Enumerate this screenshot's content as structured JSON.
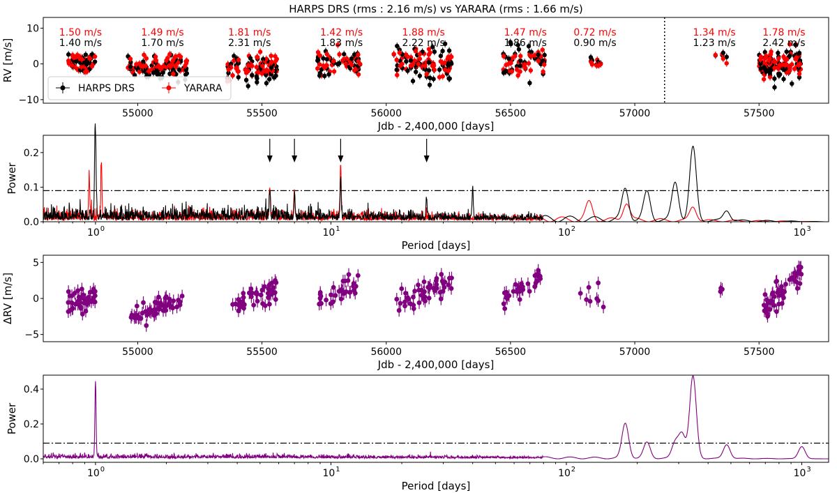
{
  "chart_data": [
    {
      "type": "scatter",
      "title": "HARPS DRS (rms : 2.16 m/s)    vs    YARARA (rms : 1.66 m/s)",
      "xlabel": "Jdb - 2,400,000 [days]",
      "ylabel": "RV [m/s]",
      "xlim": [
        54620,
        57780
      ],
      "ylim": [
        -11,
        13
      ],
      "xticks": [
        55000,
        55500,
        56000,
        56500,
        57000,
        57500
      ],
      "yticks": [
        -10,
        0,
        10
      ],
      "vline_x": 57120,
      "legend": {
        "position": "bottom-left",
        "entries": [
          "HARPS DRS",
          "YARARA"
        ]
      },
      "series": [
        {
          "name": "HARPS DRS",
          "color": "#000000"
        },
        {
          "name": "YARARA",
          "color": "#ff0000"
        }
      ],
      "seasons": [
        {
          "center": 54770,
          "start": 54710,
          "end": 54830,
          "harps_rms": "1.40 m/s",
          "yarara_rms": "1.50 m/s",
          "harps_mean": 0.6,
          "yarara_mean": 0.5,
          "harps_sd": 1.4,
          "yarara_sd": 1.5,
          "n": 36
        },
        {
          "center": 55100,
          "start": 54960,
          "end": 55200,
          "harps_rms": "1.70 m/s",
          "yarara_rms": "1.49 m/s",
          "harps_mean": -1.5,
          "yarara_mean": -0.2,
          "harps_sd": 1.7,
          "yarara_sd": 1.5,
          "n": 60
        },
        {
          "center": 55450,
          "start": 55360,
          "end": 55560,
          "harps_rms": "2.31 m/s",
          "yarara_rms": "1.81 m/s",
          "harps_mean": -1.2,
          "yarara_mean": -0.5,
          "harps_sd": 2.3,
          "yarara_sd": 1.8,
          "n": 50
        },
        {
          "center": 55820,
          "start": 55720,
          "end": 55900,
          "harps_rms": "1.83 m/s",
          "yarara_rms": "1.42 m/s",
          "harps_mean": 0.3,
          "yarara_mean": 0.0,
          "harps_sd": 1.8,
          "yarara_sd": 1.4,
          "n": 36
        },
        {
          "center": 56150,
          "start": 56030,
          "end": 56270,
          "harps_rms": "2.22 m/s",
          "yarara_rms": "1.88 m/s",
          "harps_mean": 0.5,
          "yarara_mean": 0.3,
          "harps_sd": 2.2,
          "yarara_sd": 1.9,
          "n": 56
        },
        {
          "center": 56560,
          "start": 56470,
          "end": 56640,
          "harps_rms": "1.86 m/s",
          "yarara_rms": "1.47 m/s",
          "harps_mean": 1.0,
          "yarara_mean": 0.6,
          "harps_sd": 1.9,
          "yarara_sd": 1.5,
          "n": 34
        },
        {
          "center": 56840,
          "start": 56780,
          "end": 56880,
          "harps_rms": "0.90 m/s",
          "yarara_rms": "0.72 m/s",
          "harps_mean": 0.2,
          "yarara_mean": 0.3,
          "harps_sd": 0.9,
          "yarara_sd": 0.7,
          "n": 8
        },
        {
          "center": 57320,
          "start": 57290,
          "end": 57370,
          "harps_rms": "1.23 m/s",
          "yarara_rms": "1.34 m/s",
          "harps_mean": 2.0,
          "yarara_mean": 2.3,
          "harps_sd": 1.2,
          "yarara_sd": 1.3,
          "n": 4
        },
        {
          "center": 57600,
          "start": 57500,
          "end": 57670,
          "harps_rms": "2.42 m/s",
          "yarara_rms": "1.78 m/s",
          "harps_mean": -0.5,
          "yarara_mean": 0.0,
          "harps_sd": 2.4,
          "yarara_sd": 1.8,
          "n": 70
        }
      ]
    },
    {
      "type": "line",
      "xscale": "log",
      "xlabel": "Period [days]",
      "ylabel": "Power",
      "xlim": [
        0.6,
        1300
      ],
      "ylim": [
        0,
        0.25
      ],
      "xticks": [
        1,
        10,
        100,
        1000
      ],
      "xtick_labels": [
        "10",
        "10",
        "10",
        "10"
      ],
      "xtick_exponents": [
        "0",
        "1",
        "2",
        "3"
      ],
      "yticks": [
        0.0,
        0.1,
        0.2
      ],
      "ytick_labels": [
        "0.0",
        "0.1",
        "0.2"
      ],
      "fap_level": 0.09,
      "arrows_at_period": [
        5.5,
        7.0,
        11.0,
        25.5
      ],
      "series": [
        {
          "name": "HARPS DRS",
          "color": "#000000",
          "noise": 0.03,
          "peaks": [
            [
              0.995,
              0.2
            ],
            [
              1.003,
              0.13
            ],
            [
              5.5,
              0.08
            ],
            [
              7.0,
              0.06
            ],
            [
              11.0,
              0.11
            ],
            [
              25.5,
              0.06
            ],
            [
              40,
              0.09
            ],
            [
              178,
              0.09
            ],
            [
              220,
              0.08
            ],
            [
              290,
              0.11
            ],
            [
              345,
              0.21
            ],
            [
              480,
              0.03
            ]
          ]
        },
        {
          "name": "YARARA",
          "color": "#ff0000",
          "noise": 0.025,
          "peaks": [
            [
              0.94,
              0.11
            ],
            [
              1.06,
              0.16
            ],
            [
              5.5,
              0.09
            ],
            [
              7.0,
              0.08
            ],
            [
              11.0,
              0.16
            ],
            [
              125,
              0.05
            ],
            [
              180,
              0.05
            ],
            [
              345,
              0.04
            ]
          ]
        }
      ]
    },
    {
      "type": "scatter",
      "xlabel": "Jdb - 2,400,000 [days]",
      "ylabel": "ΔRV [m/s]",
      "xlim": [
        54620,
        57780
      ],
      "ylim": [
        -6,
        6
      ],
      "xticks": [
        55000,
        55500,
        56000,
        56500,
        57000,
        57500
      ],
      "yticks": [
        -5,
        0,
        5
      ],
      "series": [
        {
          "name": "ΔRV",
          "color": "#800080"
        }
      ],
      "segments": [
        {
          "start": 54720,
          "end": 54830,
          "y0": -0.6,
          "y1": 0.0,
          "n": 40
        },
        {
          "start": 54970,
          "end": 55180,
          "y0": -3.0,
          "y1": 0.0,
          "n": 55
        },
        {
          "start": 55380,
          "end": 55560,
          "y0": -1.0,
          "y1": 1.5,
          "n": 45
        },
        {
          "start": 55730,
          "end": 55900,
          "y0": -0.5,
          "y1": 2.0,
          "n": 30
        },
        {
          "start": 56040,
          "end": 56270,
          "y0": -0.5,
          "y1": 2.0,
          "n": 50
        },
        {
          "start": 56470,
          "end": 56640,
          "y0": 0.0,
          "y1": 3.0,
          "n": 30
        },
        {
          "start": 56780,
          "end": 56880,
          "y0": 0.0,
          "y1": 0.5,
          "n": 8
        },
        {
          "start": 57310,
          "end": 57360,
          "y0": -1.5,
          "y1": 2.0,
          "n": 3
        },
        {
          "start": 57520,
          "end": 57670,
          "y0": -1.5,
          "y1": 4.0,
          "n": 50
        }
      ]
    },
    {
      "type": "line",
      "xscale": "log",
      "xlabel": "Period [days]",
      "ylabel": "Power",
      "xlim": [
        0.6,
        1300
      ],
      "ylim": [
        -0.02,
        0.48
      ],
      "xticks": [
        1,
        10,
        100,
        1000
      ],
      "xtick_labels": [
        "10",
        "10",
        "10",
        "10"
      ],
      "xtick_exponents": [
        "0",
        "1",
        "2",
        "3"
      ],
      "yticks": [
        0.0,
        0.2,
        0.4
      ],
      "ytick_labels": [
        "0.0",
        "0.2",
        "0.4"
      ],
      "fap_level": 0.09,
      "series": [
        {
          "name": "ΔRV",
          "color": "#800080",
          "noise": 0.02,
          "peaks": [
            [
              1.0,
              0.44
            ],
            [
              178,
              0.2
            ],
            [
              220,
              0.09
            ],
            [
              290,
              0.09
            ],
            [
              310,
              0.14
            ],
            [
              345,
              0.47
            ],
            [
              480,
              0.08
            ],
            [
              1000,
              0.07
            ]
          ]
        }
      ]
    }
  ]
}
